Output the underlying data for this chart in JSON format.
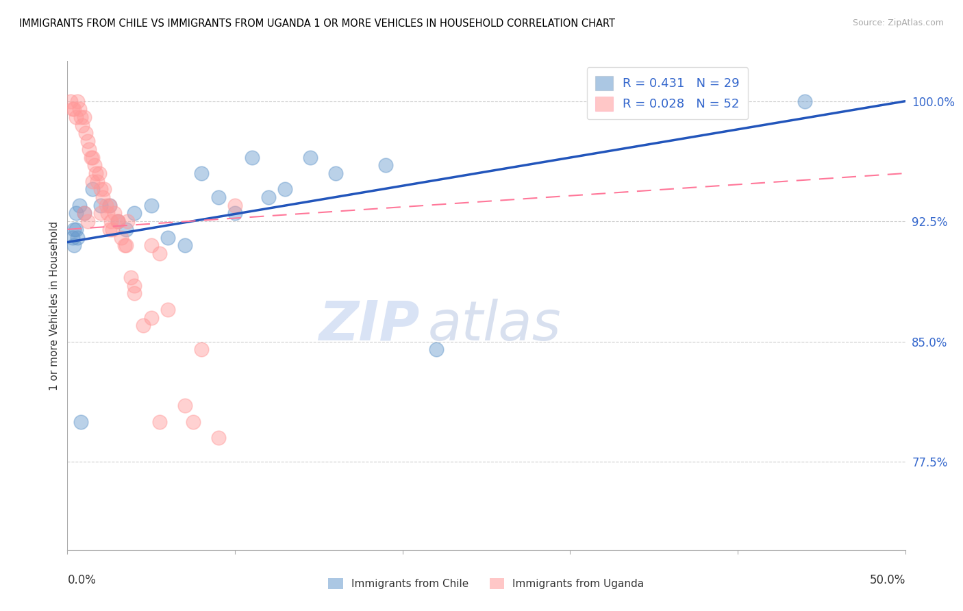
{
  "title": "IMMIGRANTS FROM CHILE VS IMMIGRANTS FROM UGANDA 1 OR MORE VEHICLES IN HOUSEHOLD CORRELATION CHART",
  "source": "Source: ZipAtlas.com",
  "ylabel": "1 or more Vehicles in Household",
  "ytick_values": [
    77.5,
    85.0,
    92.5,
    100.0
  ],
  "xmin": 0.0,
  "xmax": 50.0,
  "ymin": 72.0,
  "ymax": 102.5,
  "chile_R": 0.431,
  "chile_N": 29,
  "uganda_R": 0.028,
  "uganda_N": 52,
  "chile_color": "#6699CC",
  "uganda_color": "#FF9999",
  "chile_trend_color": "#2255BB",
  "uganda_trend_color": "#FF7799",
  "chile_label": "Immigrants from Chile",
  "uganda_label": "Immigrants from Uganda",
  "watermark_zip": "ZIP",
  "watermark_atlas": "atlas",
  "chile_trend_x0": 0.0,
  "chile_trend_y0": 91.2,
  "chile_trend_x1": 50.0,
  "chile_trend_y1": 100.0,
  "uganda_trend_x0": 0.0,
  "uganda_trend_y0": 92.0,
  "uganda_trend_x1": 50.0,
  "uganda_trend_y1": 95.5,
  "chile_x": [
    0.3,
    0.4,
    0.5,
    0.6,
    0.8,
    1.5,
    2.0,
    2.5,
    3.0,
    3.5,
    4.0,
    5.0,
    6.0,
    7.0,
    8.0,
    9.0,
    10.0,
    11.0,
    12.0,
    13.0,
    14.5,
    16.0,
    19.0,
    22.0,
    0.4,
    0.5,
    0.7,
    1.0,
    44.0
  ],
  "chile_y": [
    91.5,
    91.0,
    92.0,
    91.5,
    80.0,
    94.5,
    93.5,
    93.5,
    92.5,
    92.0,
    93.0,
    93.5,
    91.5,
    91.0,
    95.5,
    94.0,
    93.0,
    96.5,
    94.0,
    94.5,
    96.5,
    95.5,
    96.0,
    84.5,
    92.0,
    93.0,
    93.5,
    93.0,
    100.0
  ],
  "uganda_x": [
    0.2,
    0.3,
    0.4,
    0.5,
    0.6,
    0.7,
    0.8,
    0.9,
    1.0,
    1.1,
    1.2,
    1.3,
    1.4,
    1.5,
    1.6,
    1.7,
    1.8,
    1.9,
    2.0,
    2.1,
    2.2,
    2.3,
    2.4,
    2.5,
    2.6,
    2.7,
    2.8,
    3.0,
    3.2,
    3.4,
    3.6,
    3.8,
    4.0,
    4.5,
    5.0,
    5.5,
    6.0,
    7.0,
    8.0,
    10.0,
    1.0,
    1.2,
    1.5,
    2.0,
    2.5,
    3.0,
    3.5,
    4.0,
    5.0,
    5.5,
    7.5,
    9.0
  ],
  "uganda_y": [
    100.0,
    99.5,
    99.5,
    99.0,
    100.0,
    99.5,
    99.0,
    98.5,
    99.0,
    98.0,
    97.5,
    97.0,
    96.5,
    96.5,
    96.0,
    95.5,
    95.0,
    95.5,
    94.5,
    94.0,
    94.5,
    93.5,
    93.0,
    93.5,
    92.5,
    92.0,
    93.0,
    92.5,
    91.5,
    91.0,
    92.5,
    89.0,
    88.5,
    86.0,
    91.0,
    90.5,
    87.0,
    81.0,
    84.5,
    93.5,
    93.0,
    92.5,
    95.0,
    93.0,
    92.0,
    92.5,
    91.0,
    88.0,
    86.5,
    80.0,
    80.0,
    79.0
  ]
}
